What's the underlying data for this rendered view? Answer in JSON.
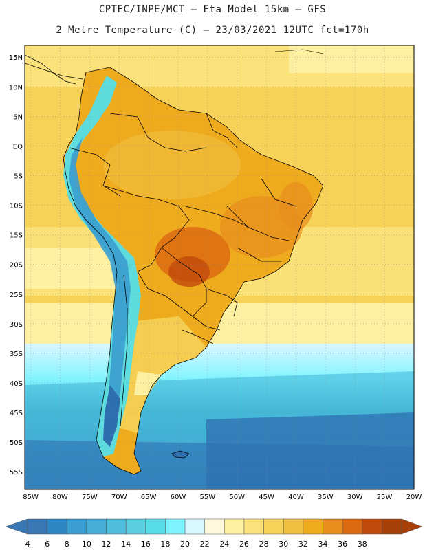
{
  "header": {
    "line1": "CPTEC/INPE/MCT –  Eta Model 15km – GFS",
    "line2": "2 Metre Temperature (C) – 23/03/2021 12UTC fct=170h"
  },
  "map": {
    "lat_labels": [
      "15N",
      "10N",
      "5N",
      "EQ",
      "5S",
      "10S",
      "15S",
      "20S",
      "25S",
      "30S",
      "35S",
      "40S",
      "45S",
      "50S",
      "55S"
    ],
    "lon_labels": [
      "85W",
      "80W",
      "75W",
      "70W",
      "65W",
      "60W",
      "55W",
      "50W",
      "45W",
      "40W",
      "35W",
      "30W",
      "25W",
      "20W"
    ],
    "lat_range": [
      17,
      -58
    ],
    "lon_range": [
      -86,
      -20
    ]
  },
  "colorbar": {
    "labels": [
      "4",
      "6",
      "8",
      "10",
      "12",
      "14",
      "16",
      "18",
      "20",
      "22",
      "24",
      "26",
      "28",
      "30",
      "32",
      "34",
      "36",
      "38"
    ],
    "colors": [
      "#3a77b5",
      "#2e86c2",
      "#3a9dd0",
      "#46aed6",
      "#4fbedd",
      "#5acfe0",
      "#55dde8",
      "#7ff3ff",
      "#d9f7ff",
      "#fff8dc",
      "#fdf0a0",
      "#fbe27a",
      "#f6d259",
      "#f0c040",
      "#efab1e",
      "#e88d1c",
      "#dc6a10",
      "#c04a0a",
      "#a8400a"
    ]
  }
}
